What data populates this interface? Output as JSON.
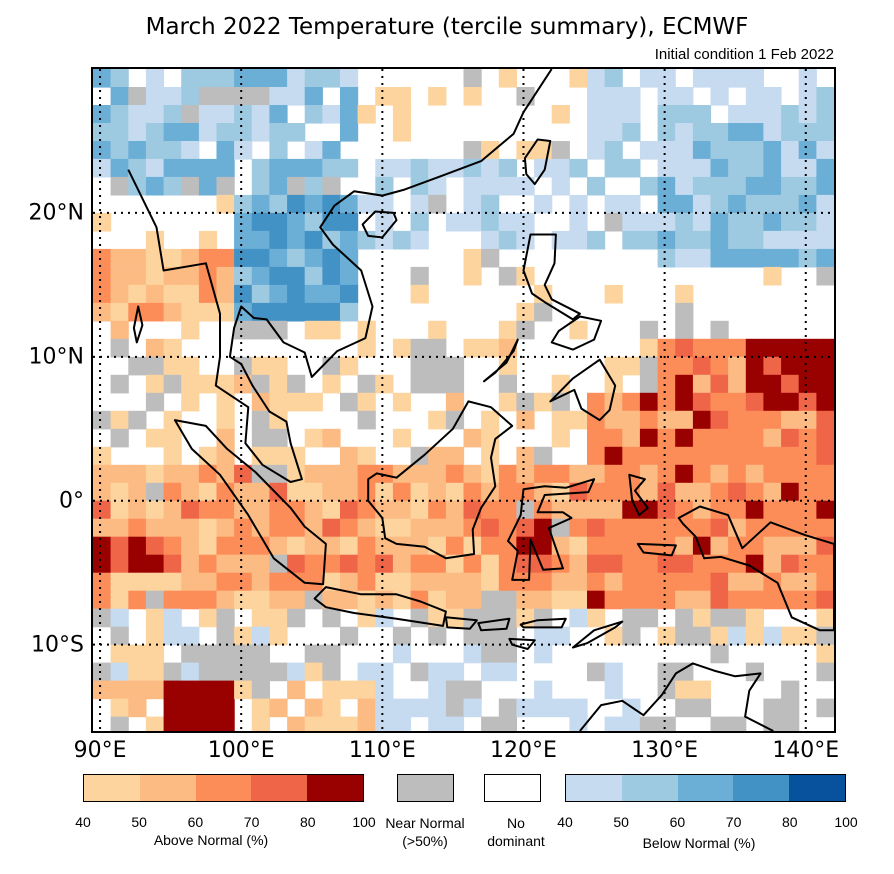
{
  "title": "March 2022 Temperature (tercile summary), ECMWF",
  "subtitle": "Initial condition 1 Feb 2022",
  "map": {
    "lon_range": [
      89.5,
      142
    ],
    "lat_range": [
      -16,
      30
    ],
    "lat_labels": [
      {
        "lat": 20,
        "text": "20°N"
      },
      {
        "lat": 10,
        "text": "10°N"
      },
      {
        "lat": 0,
        "text": "0°"
      },
      {
        "lat": -10,
        "text": "10°S"
      }
    ],
    "lon_labels": [
      {
        "lon": 90,
        "text": "90°E"
      },
      {
        "lon": 100,
        "text": "100°E"
      },
      {
        "lon": 110,
        "text": "110°E"
      },
      {
        "lon": 120,
        "text": "120°E"
      },
      {
        "lon": 130,
        "text": "130°E"
      },
      {
        "lon": 140,
        "text": "140°E"
      }
    ],
    "gridlines": "dotted"
  },
  "legend": {
    "above": {
      "caption": "Above Normal (%)",
      "colors": [
        "#fdd49e",
        "#fdbb84",
        "#fc8d59",
        "#ef6548",
        "#990000"
      ],
      "ticks": [
        "40",
        "50",
        "60",
        "70",
        "80",
        "100"
      ]
    },
    "near": {
      "caption_line1": "Near Normal",
      "caption_line2": "(>50%)",
      "color": "#bdbdbd"
    },
    "nodom": {
      "caption_line1": "No",
      "caption_line2": "dominant",
      "color": "#ffffff"
    },
    "below": {
      "caption": "Below Normal (%)",
      "colors": [
        "#c6dbef",
        "#9ecae1",
        "#6baed6",
        "#4292c6",
        "#08519c"
      ],
      "ticks": [
        "40",
        "50",
        "60",
        "70",
        "80",
        "100"
      ]
    }
  }
}
